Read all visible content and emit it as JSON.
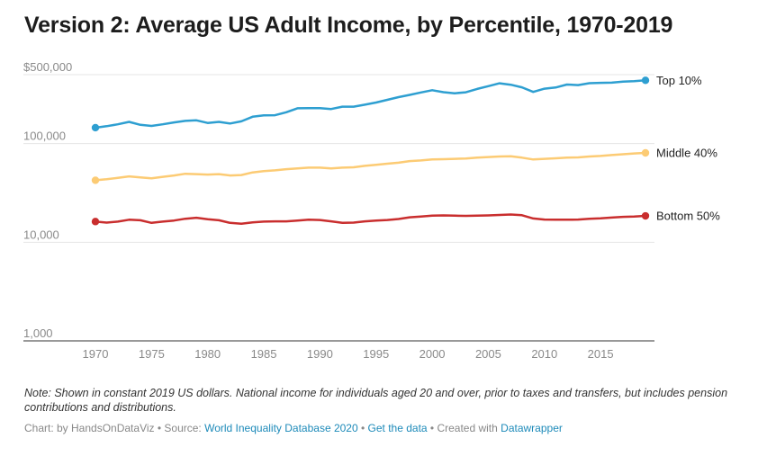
{
  "header": {
    "title": "Version 2: Average US Adult Income, by Percentile, 1970-2019"
  },
  "chart_data": {
    "type": "line",
    "y_scale": "log",
    "ylim": [
      1000,
      500000
    ],
    "xlim": [
      1970,
      2019
    ],
    "x_ticks": [
      "1970",
      "1975",
      "1980",
      "1985",
      "1990",
      "1995",
      "2000",
      "2005",
      "2010",
      "2015"
    ],
    "y_ticks": [
      {
        "value": 500000,
        "label": "$500,000"
      },
      {
        "value": 100000,
        "label": "100,000"
      },
      {
        "value": 10000,
        "label": "10,000"
      },
      {
        "value": 1000,
        "label": "1,000"
      }
    ],
    "grid": true,
    "x": [
      1970,
      1971,
      1972,
      1973,
      1974,
      1975,
      1976,
      1977,
      1978,
      1979,
      1980,
      1981,
      1982,
      1983,
      1984,
      1985,
      1986,
      1987,
      1988,
      1989,
      1990,
      1991,
      1992,
      1993,
      1994,
      1995,
      1996,
      1997,
      1998,
      1999,
      2000,
      2001,
      2002,
      2003,
      2004,
      2005,
      2006,
      2007,
      2008,
      2009,
      2010,
      2011,
      2012,
      2013,
      2014,
      2015,
      2016,
      2017,
      2018,
      2019
    ],
    "series": [
      {
        "name": "Top 10%",
        "color": "#2e9fd1",
        "values": [
          145000,
          150000,
          157000,
          166000,
          155000,
          151000,
          157000,
          164000,
          170000,
          172000,
          162000,
          166000,
          160000,
          168000,
          187000,
          193000,
          194000,
          208000,
          228000,
          229000,
          229000,
          224000,
          237000,
          237000,
          248000,
          261000,
          278000,
          296000,
          312000,
          330000,
          348000,
          332000,
          324000,
          331000,
          358000,
          382000,
          409000,
          395000,
          372000,
          334000,
          360000,
          370000,
          397000,
          392000,
          410000,
          413000,
          415000,
          425000,
          429000,
          438000
        ]
      },
      {
        "name": "Middle 40%",
        "color": "#fccb74",
        "values": [
          42500,
          43500,
          45000,
          46500,
          45500,
          44500,
          46000,
          47500,
          49500,
          49000,
          48500,
          49000,
          47500,
          48000,
          51000,
          52500,
          53500,
          55000,
          56000,
          57000,
          57000,
          56000,
          57000,
          57500,
          59500,
          61000,
          62500,
          64000,
          66500,
          67500,
          69000,
          69500,
          70000,
          70500,
          72000,
          73000,
          74000,
          74500,
          72000,
          69000,
          70000,
          71000,
          72000,
          72500,
          74000,
          75000,
          76500,
          78000,
          79500,
          80500
        ]
      },
      {
        "name": "Bottom 50%",
        "color": "#c92e2e",
        "values": [
          16200,
          15800,
          16200,
          16900,
          16700,
          15700,
          16200,
          16600,
          17300,
          17700,
          17100,
          16700,
          15700,
          15400,
          15900,
          16200,
          16300,
          16300,
          16600,
          16900,
          16800,
          16300,
          15700,
          15800,
          16300,
          16600,
          16800,
          17200,
          17900,
          18200,
          18600,
          18700,
          18600,
          18500,
          18600,
          18700,
          18900,
          19100,
          18800,
          17400,
          17000,
          16900,
          16900,
          17000,
          17300,
          17500,
          17800,
          18100,
          18200,
          18500
        ]
      }
    ]
  },
  "notes": "Note: Shown in constant 2019 US dollars. National income for individuals aged 20 and over, prior to taxes and transfers, but includes pension contributions and distributions.",
  "footer": {
    "byline": "Chart: by HandsOnDataViz",
    "separator": " • ",
    "source_label": "Source: ",
    "source_link": "World Inequality Database 2020",
    "data_link": "Get the data",
    "created_with": "Created with ",
    "tool_link": "Datawrapper"
  }
}
